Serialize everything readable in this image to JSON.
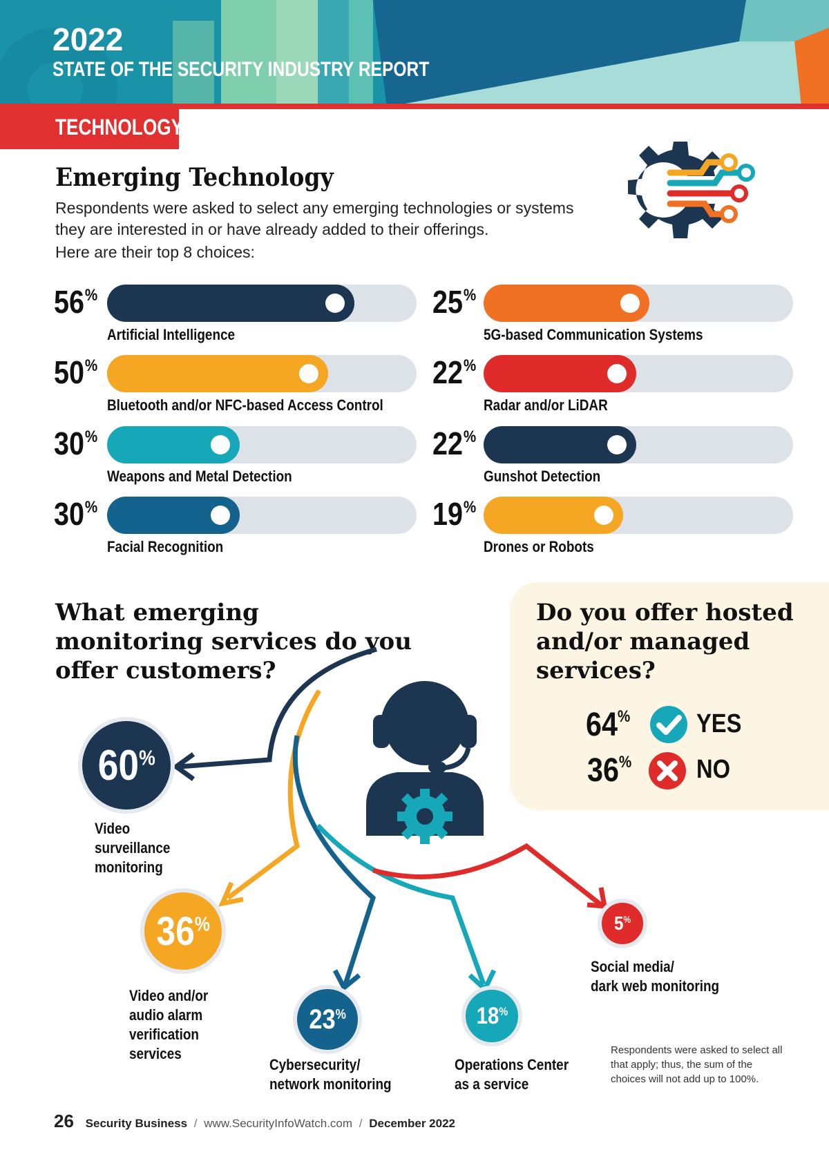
{
  "header": {
    "year": "2022",
    "report_title": "STATE OF THE SECURITY INDUSTRY REPORT",
    "section_tab": "TECHNOLOGY"
  },
  "emerging": {
    "title": "Emerging Technology",
    "intro": "Respondents were asked to select any emerging technologies or systems they are interested in or have already added to their offerings.",
    "intro2": "Here are their top 8 choices:",
    "items": [
      {
        "value": 56,
        "label": "Artificial Intelligence",
        "color": "#1c3550"
      },
      {
        "value": 50,
        "label": "Bluetooth and/or NFC-based Access Control",
        "color": "#f5a623"
      },
      {
        "value": 30,
        "label": "Weapons and Metal Detection",
        "color": "#16a8b8"
      },
      {
        "value": 30,
        "label": "Facial Recognition",
        "color": "#14638f"
      },
      {
        "value": 25,
        "label": "5G-based Communication Systems",
        "color": "#f07024"
      },
      {
        "value": 22,
        "label": "Radar and/or LiDAR",
        "color": "#e02b2b"
      },
      {
        "value": 22,
        "label": "Gunshot Detection",
        "color": "#1c3550"
      },
      {
        "value": 19,
        "label": "Drones or Robots",
        "color": "#f5a623"
      }
    ]
  },
  "chart_data": {
    "type": "bar",
    "categories": [
      "Artificial Intelligence",
      "Bluetooth and/or NFC-based Access Control",
      "Weapons and Metal Detection",
      "Facial Recognition",
      "5G-based Communication Systems",
      "Radar and/or LiDAR",
      "Gunshot Detection",
      "Drones or Robots"
    ],
    "values": [
      56,
      50,
      30,
      30,
      25,
      22,
      22,
      19
    ],
    "title": "Emerging Technology",
    "ylim": [
      0,
      100
    ]
  },
  "monitoring": {
    "question": "What emerging monitoring services do you offer customers?",
    "items": [
      {
        "value": "60",
        "label": "Video\nsurveillance\nmonitoring",
        "color": "#1c3550"
      },
      {
        "value": "36",
        "label": "Video and/or\naudio alarm\nverification\nservices",
        "color": "#f5a623"
      },
      {
        "value": "23",
        "label": "Cybersecurity/\nnetwork monitoring",
        "color": "#14638f"
      },
      {
        "value": "18",
        "label": "Operations Center\nas a service",
        "color": "#16a8b8"
      },
      {
        "value": "5",
        "label": "Social media/\ndark web monitoring",
        "color": "#e02b2b"
      }
    ]
  },
  "hosted": {
    "question": "Do you offer hosted and/or managed services?",
    "yes_value": "64",
    "yes_label": "YES",
    "no_value": "36",
    "no_label": "NO"
  },
  "note": "Respondents were asked to select all that apply; thus, the sum of the choices will not add up to 100%.",
  "footer": {
    "page": "26",
    "publication": "Security Business",
    "url": "www.SecurityInfoWatch.com",
    "date": "December 2022"
  },
  "colors": {
    "navy": "#1c3550",
    "red": "#e03030",
    "teal": "#16a8b8",
    "orange": "#f5a623"
  }
}
